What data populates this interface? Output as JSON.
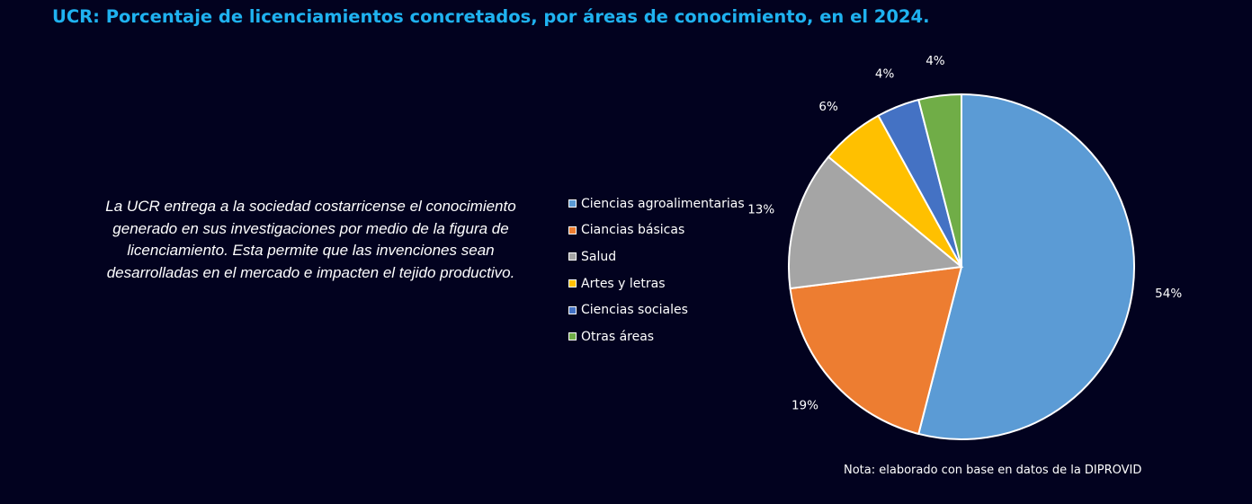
{
  "chart_data": {
    "type": "pie",
    "title": "UCR: Porcentaje de licenciamientos concretados, por áreas de conocimiento, en el 2024.",
    "categories": [
      "Ciencias agroalimentarias",
      "Ciancias básicas",
      "Salud",
      "Artes y letras",
      "Ciencias sociales",
      "Otras áreas"
    ],
    "values": [
      54,
      19,
      13,
      6,
      4,
      4
    ],
    "value_labels": [
      "54%",
      "19%",
      "13%",
      "6%",
      "4%",
      "4%"
    ],
    "colors": [
      "#5b9bd5",
      "#ed7d31",
      "#a5a5a5",
      "#ffc000",
      "#4472c4",
      "#70ad47"
    ],
    "legend_position": "left"
  },
  "description": "La UCR entrega a la sociedad costarricense el conocimiento generado en sus investigaciones por medio de la figura de licenciamiento. Esta permite que las invenciones sean desarrolladas en el mercado e impacten el tejido productivo.",
  "note": "Nota: elaborado con base en datos de la DIPROVID"
}
